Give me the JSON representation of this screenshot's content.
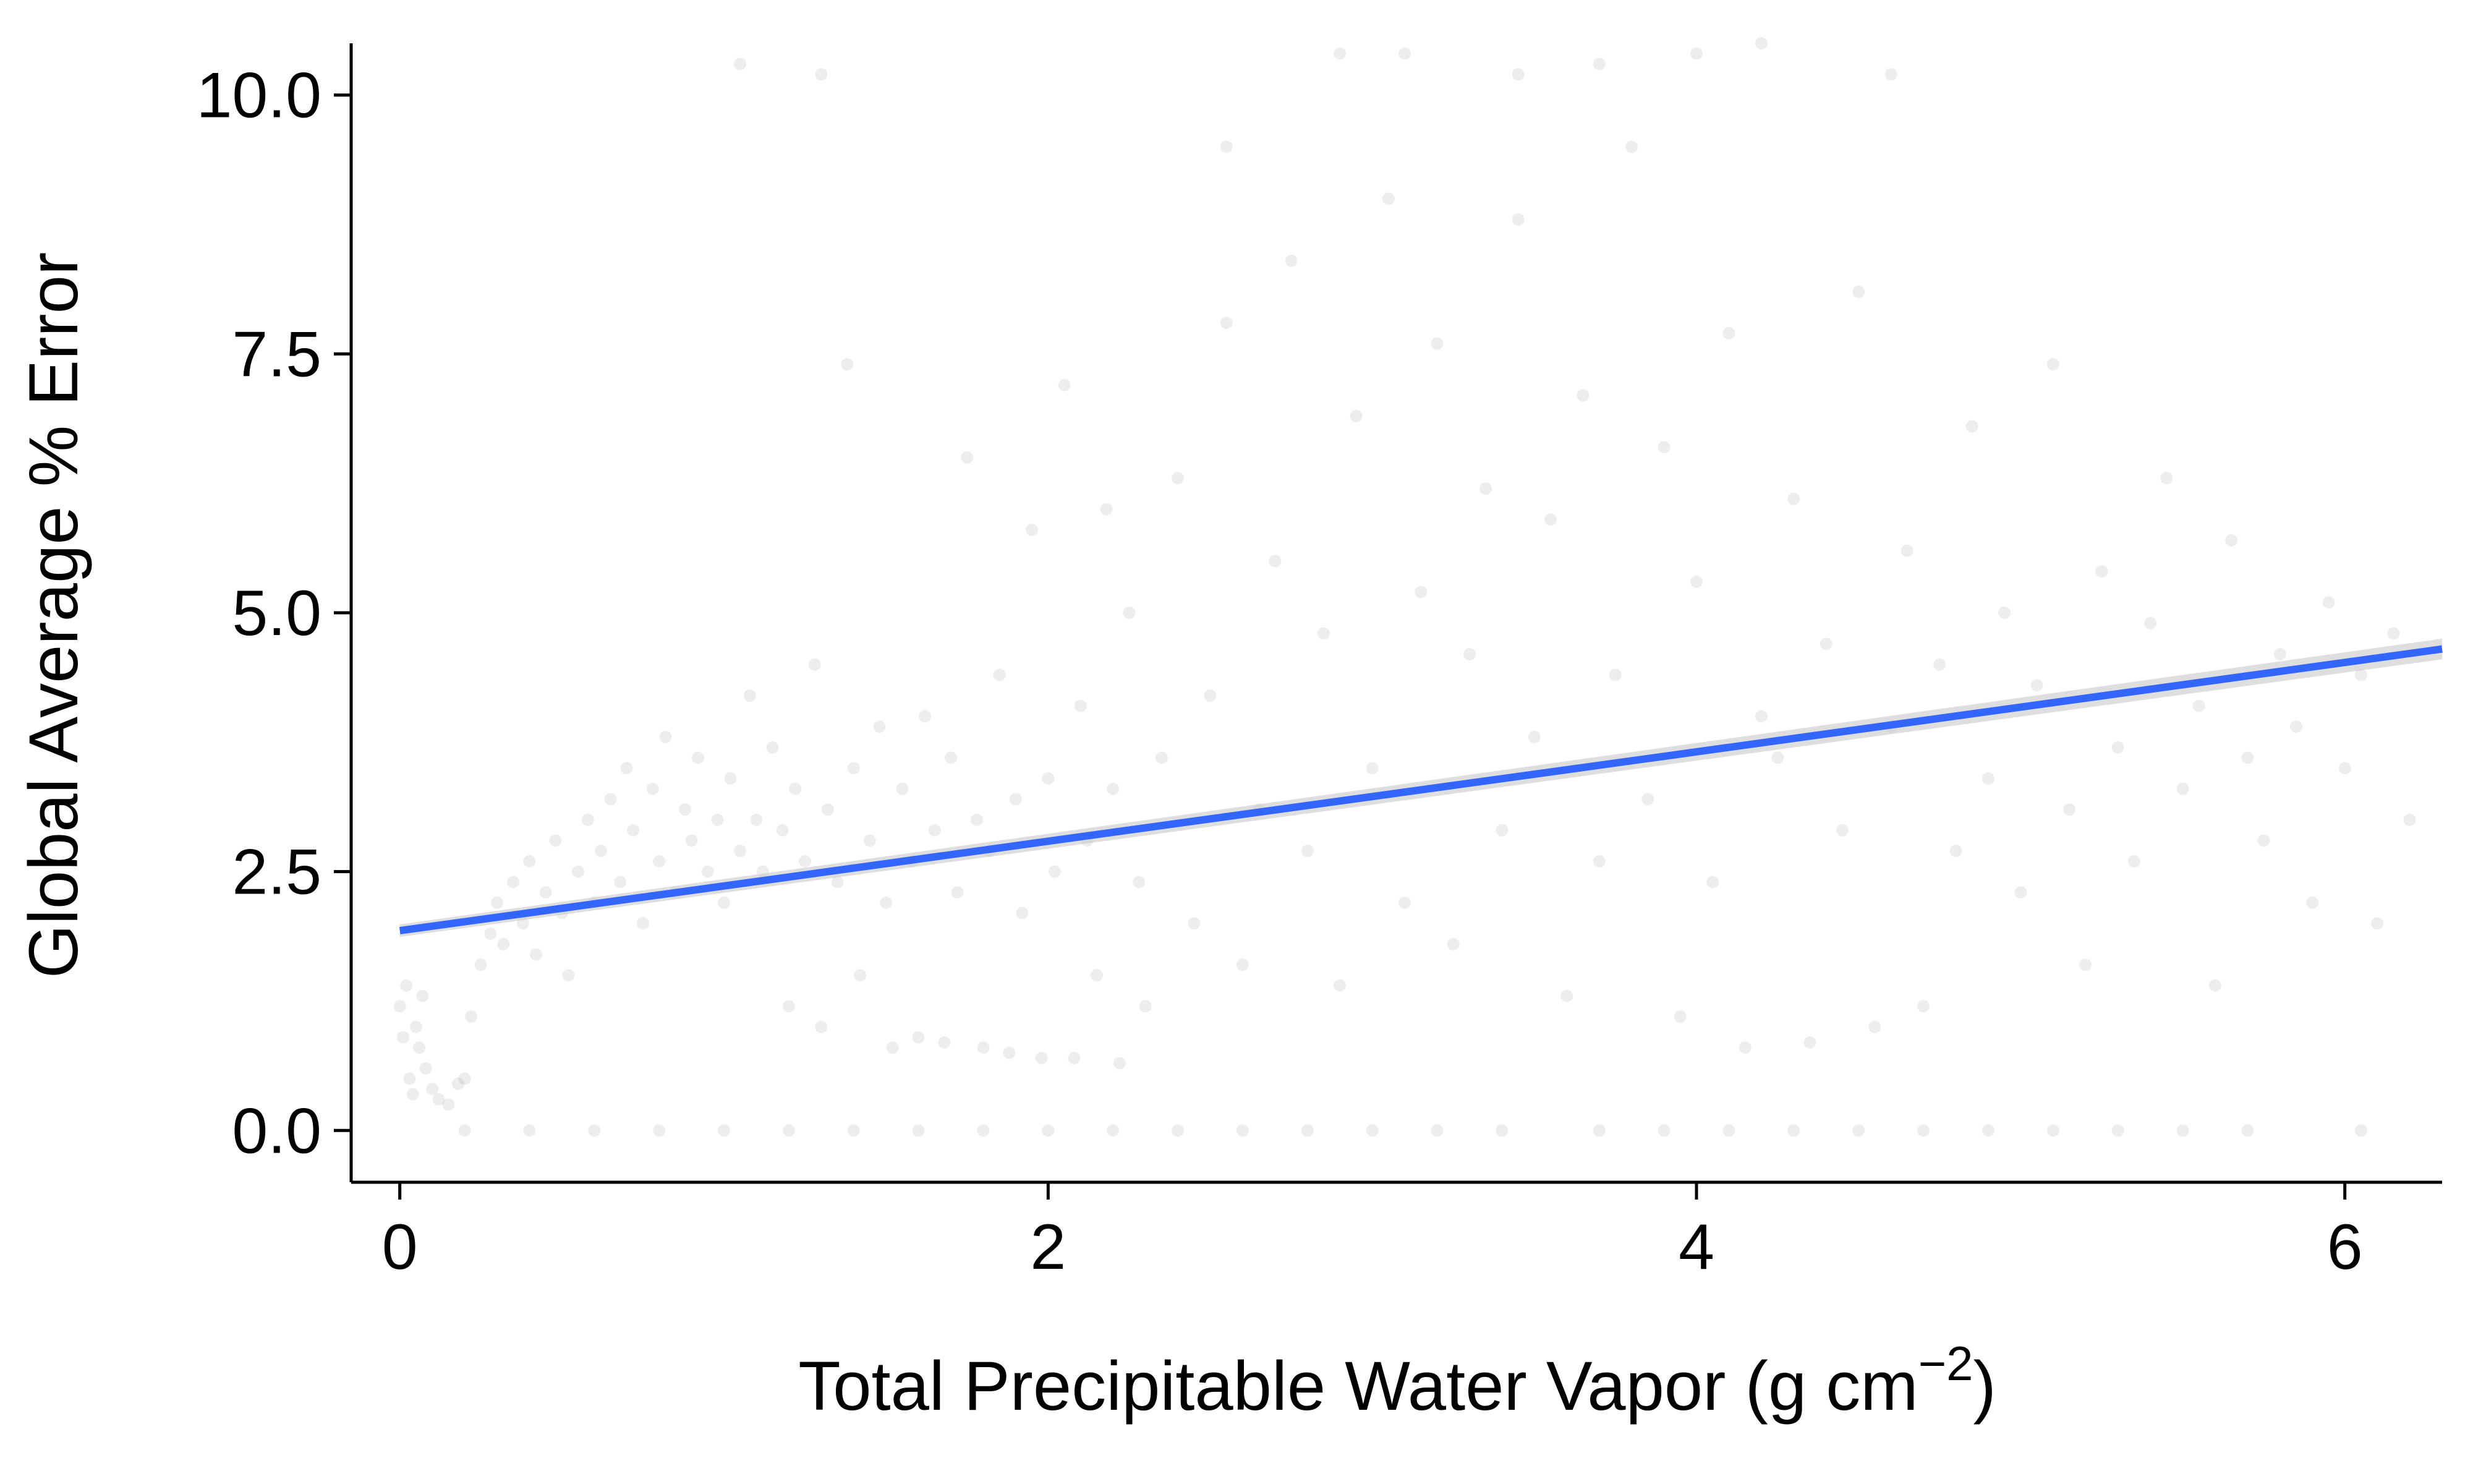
{
  "chart_data": {
    "type": "scatter",
    "title": "",
    "xlabel": "Total Precipitable Water Vapor (g cm",
    "xlabel_superscript": "−2",
    "xlabel_suffix": ")",
    "ylabel": "Global Average % Error",
    "xlim": [
      -0.15,
      6.3
    ],
    "ylim": [
      -0.5,
      10.5
    ],
    "x_ticks": [
      0,
      2,
      4,
      6
    ],
    "x_tick_labels": [
      "0",
      "2",
      "4",
      "6"
    ],
    "y_ticks": [
      0,
      2.5,
      5,
      7.5,
      10
    ],
    "y_tick_labels": [
      "0.0",
      "2.5",
      "5.0",
      "7.5",
      "10.0"
    ],
    "grid": false,
    "legend": "none",
    "colors": {
      "points": "#000000",
      "trend_line": "#3366ff",
      "confidence_band": "#c8c8c8",
      "axis": "#000000"
    },
    "series": [
      {
        "kind": "points",
        "point_alpha": 0.07,
        "points": [
          [
            0.0,
            1.2
          ],
          [
            0.01,
            0.9
          ],
          [
            0.02,
            1.4
          ],
          [
            0.03,
            0.5
          ],
          [
            0.04,
            0.35
          ],
          [
            0.05,
            1.0
          ],
          [
            0.06,
            0.8
          ],
          [
            0.07,
            1.3
          ],
          [
            0.08,
            0.6
          ],
          [
            0.1,
            0.4
          ],
          [
            0.12,
            0.3
          ],
          [
            0.15,
            0.25
          ],
          [
            0.18,
            0.45
          ],
          [
            0.2,
            0.5
          ],
          [
            0.22,
            1.1
          ],
          [
            0.25,
            1.6
          ],
          [
            0.28,
            1.9
          ],
          [
            0.3,
            2.2
          ],
          [
            0.32,
            1.8
          ],
          [
            0.35,
            2.4
          ],
          [
            0.38,
            2.0
          ],
          [
            0.4,
            2.6
          ],
          [
            0.42,
            1.7
          ],
          [
            0.45,
            2.3
          ],
          [
            0.48,
            2.8
          ],
          [
            0.5,
            2.1
          ],
          [
            0.52,
            1.5
          ],
          [
            0.55,
            2.5
          ],
          [
            0.58,
            3.0
          ],
          [
            0.6,
            2.2
          ],
          [
            0.62,
            2.7
          ],
          [
            0.65,
            3.2
          ],
          [
            0.68,
            2.4
          ],
          [
            0.7,
            3.5
          ],
          [
            0.72,
            2.9
          ],
          [
            0.75,
            2.0
          ],
          [
            0.78,
            3.3
          ],
          [
            0.8,
            2.6
          ],
          [
            0.82,
            3.8
          ],
          [
            0.85,
            2.3
          ],
          [
            0.88,
            3.1
          ],
          [
            0.9,
            2.8
          ],
          [
            0.92,
            3.6
          ],
          [
            0.95,
            2.5
          ],
          [
            0.98,
            3.0
          ],
          [
            1.0,
            2.2
          ],
          [
            1.02,
            3.4
          ],
          [
            1.05,
            2.7
          ],
          [
            1.08,
            4.2
          ],
          [
            1.1,
            3.0
          ],
          [
            1.12,
            2.5
          ],
          [
            1.15,
            3.7
          ],
          [
            1.18,
            2.9
          ],
          [
            1.2,
            1.2
          ],
          [
            1.22,
            3.3
          ],
          [
            1.25,
            2.6
          ],
          [
            1.28,
            4.5
          ],
          [
            1.3,
            1.0
          ],
          [
            1.32,
            3.1
          ],
          [
            1.35,
            2.4
          ],
          [
            1.38,
            7.4
          ],
          [
            1.4,
            3.5
          ],
          [
            1.42,
            1.5
          ],
          [
            1.45,
            2.8
          ],
          [
            1.48,
            3.9
          ],
          [
            1.5,
            2.2
          ],
          [
            1.52,
            0.8
          ],
          [
            1.55,
            3.3
          ],
          [
            1.58,
            2.6
          ],
          [
            1.6,
            0.9
          ],
          [
            1.62,
            4.0
          ],
          [
            1.65,
            2.9
          ],
          [
            1.68,
            0.85
          ],
          [
            1.7,
            3.6
          ],
          [
            1.72,
            2.3
          ],
          [
            1.75,
            6.5
          ],
          [
            1.78,
            3.0
          ],
          [
            1.8,
            0.8
          ],
          [
            1.82,
            2.7
          ],
          [
            1.85,
            4.4
          ],
          [
            1.88,
            0.75
          ],
          [
            1.9,
            3.2
          ],
          [
            1.92,
            2.1
          ],
          [
            1.95,
            5.8
          ],
          [
            1.98,
            0.7
          ],
          [
            2.0,
            3.4
          ],
          [
            2.02,
            2.5
          ],
          [
            2.05,
            7.2
          ],
          [
            2.08,
            0.7
          ],
          [
            2.1,
            4.1
          ],
          [
            2.12,
            2.8
          ],
          [
            2.15,
            1.5
          ],
          [
            2.18,
            6.0
          ],
          [
            2.2,
            3.3
          ],
          [
            2.22,
            0.65
          ],
          [
            2.25,
            5.0
          ],
          [
            2.28,
            2.4
          ],
          [
            2.3,
            1.2
          ],
          [
            2.35,
            3.6
          ],
          [
            2.4,
            6.3
          ],
          [
            2.45,
            2.0
          ],
          [
            2.5,
            4.2
          ],
          [
            2.55,
            7.8
          ],
          [
            2.6,
            1.6
          ],
          [
            2.65,
            3.1
          ],
          [
            2.7,
            5.5
          ],
          [
            2.75,
            8.4
          ],
          [
            2.8,
            2.7
          ],
          [
            2.85,
            4.8
          ],
          [
            2.9,
            1.4
          ],
          [
            2.95,
            6.9
          ],
          [
            3.0,
            3.5
          ],
          [
            3.05,
            9.0
          ],
          [
            3.1,
            2.2
          ],
          [
            3.15,
            5.2
          ],
          [
            3.2,
            7.6
          ],
          [
            3.25,
            1.8
          ],
          [
            3.3,
            4.6
          ],
          [
            3.35,
            6.2
          ],
          [
            3.4,
            2.9
          ],
          [
            3.45,
            8.8
          ],
          [
            3.5,
            3.8
          ],
          [
            3.55,
            5.9
          ],
          [
            3.6,
            1.3
          ],
          [
            3.65,
            7.1
          ],
          [
            3.7,
            2.6
          ],
          [
            3.75,
            4.4
          ],
          [
            3.8,
            9.5
          ],
          [
            3.85,
            3.2
          ],
          [
            3.9,
            6.6
          ],
          [
            3.95,
            1.1
          ],
          [
            4.0,
            5.3
          ],
          [
            4.05,
            2.4
          ],
          [
            4.1,
            7.7
          ],
          [
            4.15,
            0.8
          ],
          [
            4.2,
            4.0
          ],
          [
            4.25,
            3.6
          ],
          [
            4.3,
            6.1
          ],
          [
            4.35,
            0.85
          ],
          [
            4.4,
            4.7
          ],
          [
            4.45,
            2.9
          ],
          [
            4.5,
            8.1
          ],
          [
            4.55,
            1.0
          ],
          [
            4.6,
            3.9
          ],
          [
            4.65,
            5.6
          ],
          [
            4.7,
            1.2
          ],
          [
            4.75,
            4.5
          ],
          [
            4.8,
            2.7
          ],
          [
            4.85,
            6.8
          ],
          [
            4.9,
            3.4
          ],
          [
            4.95,
            5.0
          ],
          [
            5.0,
            2.3
          ],
          [
            5.05,
            4.3
          ],
          [
            5.1,
            7.4
          ],
          [
            5.15,
            3.1
          ],
          [
            5.2,
            1.6
          ],
          [
            5.25,
            5.4
          ],
          [
            5.3,
            3.7
          ],
          [
            5.35,
            2.6
          ],
          [
            5.4,
            4.9
          ],
          [
            5.45,
            6.3
          ],
          [
            5.5,
            3.3
          ],
          [
            5.55,
            4.1
          ],
          [
            5.6,
            1.4
          ],
          [
            5.65,
            5.7
          ],
          [
            5.7,
            3.6
          ],
          [
            5.75,
            2.8
          ],
          [
            5.8,
            4.6
          ],
          [
            5.85,
            3.9
          ],
          [
            5.9,
            2.2
          ],
          [
            5.95,
            5.1
          ],
          [
            6.0,
            3.5
          ],
          [
            6.05,
            4.4
          ],
          [
            6.1,
            2.0
          ],
          [
            6.15,
            4.8
          ],
          [
            6.2,
            3.0
          ],
          [
            0.2,
            0.0
          ],
          [
            0.4,
            0.0
          ],
          [
            0.6,
            0.0
          ],
          [
            0.8,
            0.0
          ],
          [
            1.0,
            0.0
          ],
          [
            1.2,
            0.0
          ],
          [
            1.4,
            0.0
          ],
          [
            1.6,
            0.0
          ],
          [
            1.8,
            0.0
          ],
          [
            2.0,
            0.0
          ],
          [
            2.2,
            0.0
          ],
          [
            2.4,
            0.0
          ],
          [
            2.6,
            0.0
          ],
          [
            2.8,
            0.0
          ],
          [
            3.0,
            0.0
          ],
          [
            3.2,
            0.0
          ],
          [
            3.4,
            0.0
          ],
          [
            3.7,
            0.0
          ],
          [
            3.9,
            0.0
          ],
          [
            4.1,
            0.0
          ],
          [
            4.3,
            0.0
          ],
          [
            4.5,
            0.0
          ],
          [
            4.7,
            0.0
          ],
          [
            4.9,
            0.0
          ],
          [
            5.1,
            0.0
          ],
          [
            5.3,
            0.0
          ],
          [
            5.5,
            0.0
          ],
          [
            5.7,
            0.0
          ],
          [
            6.05,
            0.0
          ],
          [
            1.05,
            10.3
          ],
          [
            1.3,
            10.2
          ],
          [
            2.55,
            9.5
          ],
          [
            2.9,
            10.4
          ],
          [
            3.1,
            10.4
          ],
          [
            3.45,
            10.2
          ],
          [
            3.7,
            10.3
          ],
          [
            4.0,
            10.4
          ],
          [
            4.2,
            10.5
          ],
          [
            4.6,
            10.2
          ]
        ]
      },
      {
        "kind": "trend_line",
        "points": [
          [
            0.0,
            1.93
          ],
          [
            6.3,
            4.65
          ]
        ]
      }
    ]
  }
}
